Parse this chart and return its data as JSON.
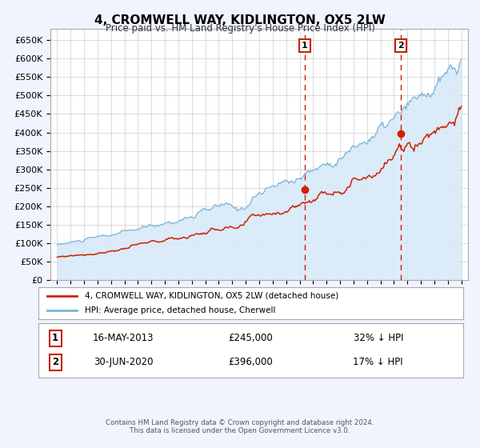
{
  "title": "4, CROMWELL WAY, KIDLINGTON, OX5 2LW",
  "subtitle": "Price paid vs. HM Land Registry's House Price Index (HPI)",
  "bg_color": "#f0f4ff",
  "plot_bg_color": "#ffffff",
  "hpi_color": "#7ab3d9",
  "hpi_fill_color": "#d6e8f7",
  "price_color": "#cc2200",
  "annotation1_date": 2013.37,
  "annotation1_price": 245000,
  "annotation2_date": 2020.5,
  "annotation2_price": 396000,
  "legend_line1": "4, CROMWELL WAY, KIDLINGTON, OX5 2LW (detached house)",
  "legend_line2": "HPI: Average price, detached house, Cherwell",
  "table_row1_date": "16-MAY-2013",
  "table_row1_price": "£245,000",
  "table_row1_hpi": "32% ↓ HPI",
  "table_row2_date": "30-JUN-2020",
  "table_row2_price": "£396,000",
  "table_row2_hpi": "17% ↓ HPI",
  "footer1": "Contains HM Land Registry data © Crown copyright and database right 2024.",
  "footer2": "This data is licensed under the Open Government Licence v3.0.",
  "ylim_max": 680000,
  "xlim_min": 1994.5,
  "xlim_max": 2025.5,
  "start_year": 1995,
  "end_year": 2025
}
